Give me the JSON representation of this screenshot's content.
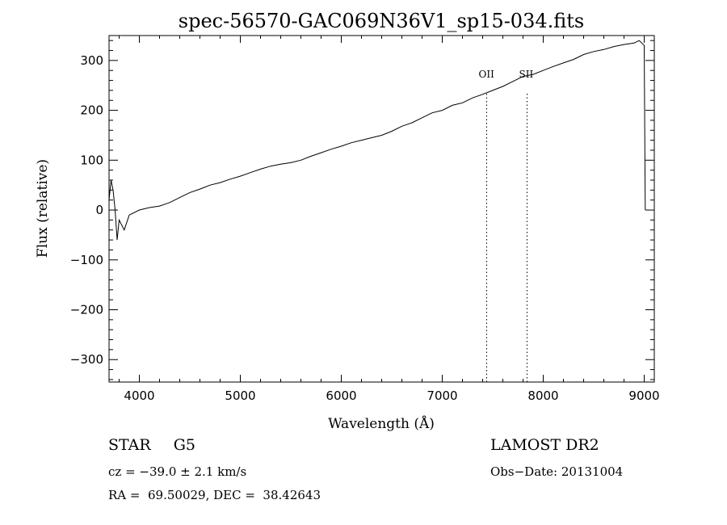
{
  "chart_data": {
    "type": "line",
    "title": "spec-56570-GAC069N36V1_sp15-034.fits",
    "xlabel": "Wavelength (Å)",
    "ylabel": "Flux (relative)",
    "xlim": [
      3700,
      9100
    ],
    "ylim": [
      -345,
      350
    ],
    "xticks": [
      4000,
      5000,
      6000,
      7000,
      8000,
      9000
    ],
    "xtick_labels": [
      "4000",
      "5000",
      "6000",
      "7000",
      "8000",
      "9000"
    ],
    "yticks": [
      -300,
      -200,
      -100,
      0,
      100,
      200,
      300
    ],
    "ytick_labels": [
      "−300",
      "−200",
      "−100",
      "0",
      "100",
      "200",
      "300"
    ],
    "grid": false,
    "series": [
      {
        "x": [
          3700,
          3720,
          3740,
          3760,
          3780,
          3800,
          3850,
          3900,
          4000,
          4100,
          4200,
          4300,
          4400,
          4500,
          4600,
          4700,
          4800,
          4900,
          5000,
          5100,
          5200,
          5300,
          5400,
          5500,
          5600,
          5700,
          5800,
          5900,
          6000,
          6100,
          6200,
          6300,
          6400,
          6500,
          6600,
          6700,
          6800,
          6900,
          7000,
          7100,
          7200,
          7300,
          7400,
          7500,
          7600,
          7700,
          7800,
          7900,
          8000,
          8100,
          8200,
          8300,
          8400,
          8500,
          8600,
          8700,
          8800,
          8900,
          8950,
          9000,
          9010
        ],
        "y": [
          20,
          60,
          40,
          0,
          -60,
          -20,
          -40,
          -10,
          0,
          5,
          8,
          15,
          25,
          35,
          42,
          50,
          55,
          62,
          68,
          75,
          82,
          88,
          92,
          95,
          100,
          108,
          115,
          122,
          128,
          135,
          140,
          145,
          150,
          158,
          168,
          175,
          185,
          195,
          200,
          210,
          215,
          225,
          232,
          240,
          248,
          258,
          268,
          272,
          280,
          288,
          295,
          302,
          312,
          318,
          322,
          328,
          332,
          335,
          340,
          330,
          0
        ],
        "noise": [
          0,
          0,
          0,
          0,
          0,
          0,
          0,
          0,
          0,
          0,
          0,
          0,
          0,
          0,
          0,
          0,
          0,
          0,
          0,
          0,
          0,
          0,
          0,
          0,
          0,
          0,
          0,
          0,
          0,
          0,
          0,
          0,
          0,
          0,
          0,
          0,
          0,
          0,
          0,
          0,
          0,
          0,
          0,
          0,
          0,
          0,
          0,
          0,
          0,
          0,
          0,
          0,
          0,
          0,
          0,
          0,
          0,
          0,
          0,
          0,
          0
        ]
      }
    ],
    "line_markers": [
      {
        "label": "OII",
        "x": 7440
      },
      {
        "label": "SII",
        "x": 7840
      }
    ]
  },
  "info": {
    "object_class": "STAR",
    "subclass": "G5",
    "redshift": "cz = −39.0 ± 2.1 km/s",
    "coords": "RA =  69.50029, DEC =  38.42643",
    "survey": "LAMOST DR2",
    "obs_date": "Obs−Date: 20131004"
  }
}
